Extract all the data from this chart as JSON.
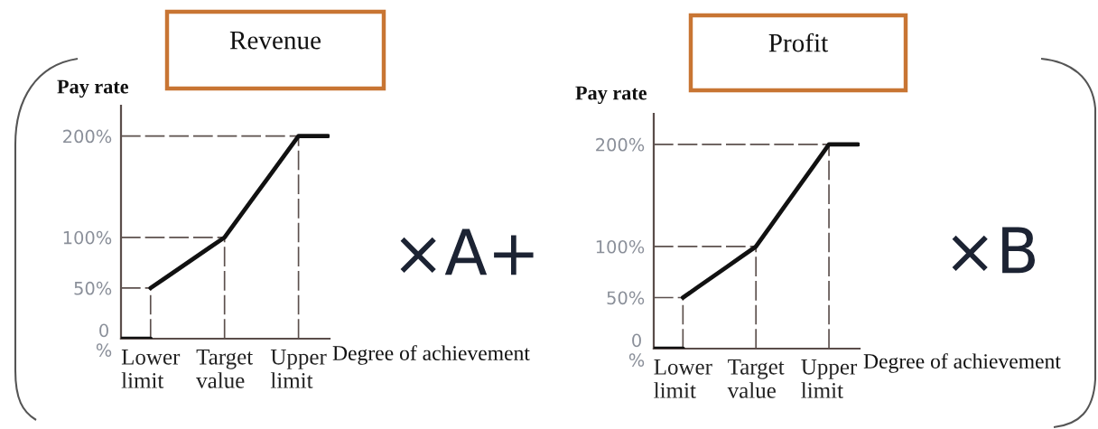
{
  "chart_data": [
    {
      "type": "line",
      "title": "Revenue",
      "xlabel": "Degree of achievement",
      "ylabel": "Pay rate",
      "annotations": [
        "×A+"
      ],
      "categories": [
        null,
        null,
        "Lower\nlimit",
        null,
        null,
        null,
        null,
        "Target\nvalue",
        null,
        null,
        null,
        null,
        "Upper\nlimit",
        null,
        null
      ],
      "ylim": [
        0,
        230
      ],
      "yticks": [
        {
          "value": 0,
          "label": "0\n%"
        },
        {
          "value": 50,
          "label": "50%"
        },
        {
          "value": 100,
          "label": "100%"
        },
        {
          "value": 200,
          "label": "200%"
        }
      ],
      "series": [
        {
          "color": "#111111",
          "values": [
            0,
            0,
            0,
            null,
            null,
            null,
            null,
            null,
            null,
            null,
            null,
            null,
            null,
            null,
            null
          ]
        },
        {
          "color": "#111111",
          "values": [
            null,
            null,
            50,
            60,
            70,
            80,
            90,
            100,
            120,
            140,
            160,
            180,
            200,
            200,
            200
          ]
        }
      ],
      "ref_lines": [
        {
          "axis": "y",
          "value": 50,
          "color": "#5c504d",
          "line_style": "dashed"
        },
        {
          "axis": "y",
          "value": 100,
          "color": "#5c504d",
          "line_style": "dashed"
        },
        {
          "axis": "y",
          "value": 200,
          "color": "#5c504d",
          "line_style": "dashed"
        },
        {
          "axis": "x",
          "value": "Lower\nlimit",
          "color": "#5c504d",
          "line_style": "dashed"
        },
        {
          "axis": "x",
          "value": "Target\nvalue",
          "color": "#5c504d",
          "line_style": "dashed"
        },
        {
          "axis": "x",
          "value": "Upper\nlimit",
          "color": "#5c504d",
          "line_style": "dashed"
        }
      ]
    },
    {
      "type": "line",
      "title": "Profit",
      "xlabel": "Degree of achievement",
      "ylabel": "Pay rate",
      "annotations": [
        "×B"
      ],
      "categories": [
        null,
        null,
        "Lower\nlimit",
        null,
        null,
        null,
        null,
        "Target\nvalue",
        null,
        null,
        null,
        null,
        "Upper\nlimit",
        null,
        null
      ],
      "ylim": [
        0,
        230
      ],
      "yticks": [
        {
          "value": 0,
          "label": "0\n%"
        },
        {
          "value": 50,
          "label": "50%"
        },
        {
          "value": 100,
          "label": "100%"
        },
        {
          "value": 200,
          "label": "200%"
        }
      ],
      "series": [
        {
          "color": "#111111",
          "values": [
            0,
            0,
            0,
            null,
            null,
            null,
            null,
            null,
            null,
            null,
            null,
            null,
            null,
            null,
            null
          ]
        },
        {
          "color": "#111111",
          "values": [
            null,
            null,
            50,
            60,
            70,
            80,
            90,
            100,
            120,
            140,
            160,
            180,
            200,
            200,
            200
          ]
        }
      ],
      "ref_lines": [
        {
          "axis": "y",
          "value": 50,
          "color": "#5c504d",
          "line_style": "dashed"
        },
        {
          "axis": "y",
          "value": 100,
          "color": "#5c504d",
          "line_style": "dashed"
        },
        {
          "axis": "y",
          "value": 200,
          "color": "#5c504d",
          "line_style": "dashed"
        },
        {
          "axis": "x",
          "value": "Lower\nlimit",
          "color": "#5c504d",
          "line_style": "dashed"
        },
        {
          "axis": "x",
          "value": "Target\nvalue",
          "color": "#5c504d",
          "line_style": "dashed"
        },
        {
          "axis": "x",
          "value": "Upper\nlimit",
          "color": "#5c504d",
          "line_style": "dashed"
        }
      ]
    }
  ]
}
